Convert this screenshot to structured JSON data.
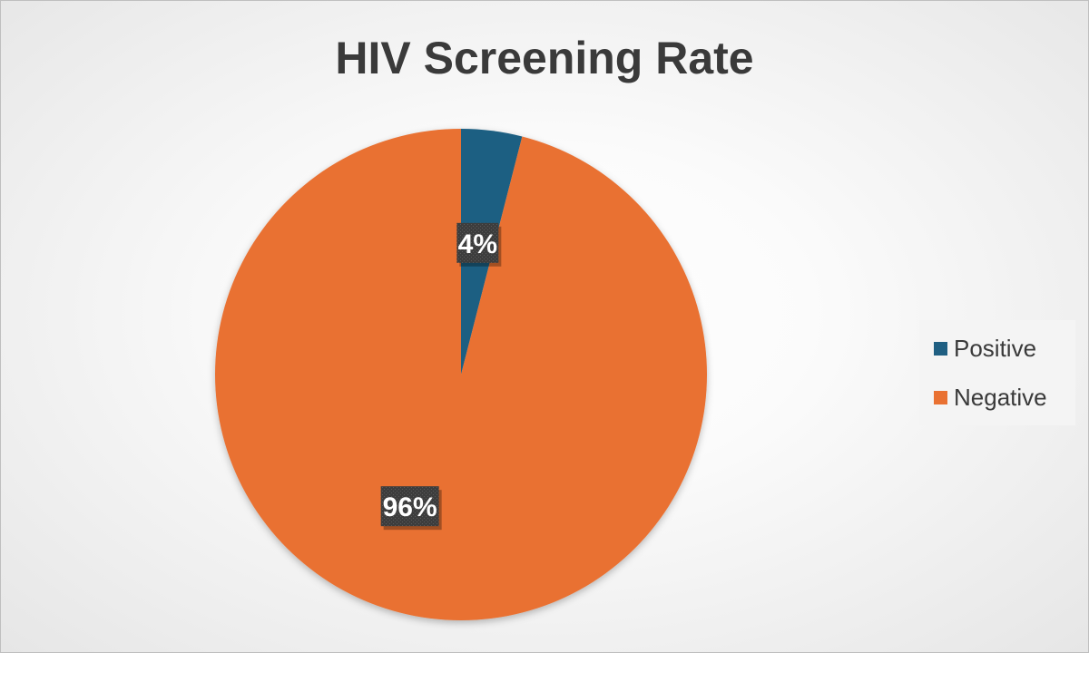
{
  "chart_data": {
    "type": "pie",
    "title": "HIV Screening Rate",
    "categories": [
      "Positive",
      "Negative"
    ],
    "values": [
      4,
      96
    ],
    "data_labels": [
      "4%",
      "96%"
    ],
    "colors": [
      "#1f5f82",
      "#e97132"
    ],
    "start_angle_deg": 0,
    "direction": "clockwise",
    "legend_position": "right"
  }
}
